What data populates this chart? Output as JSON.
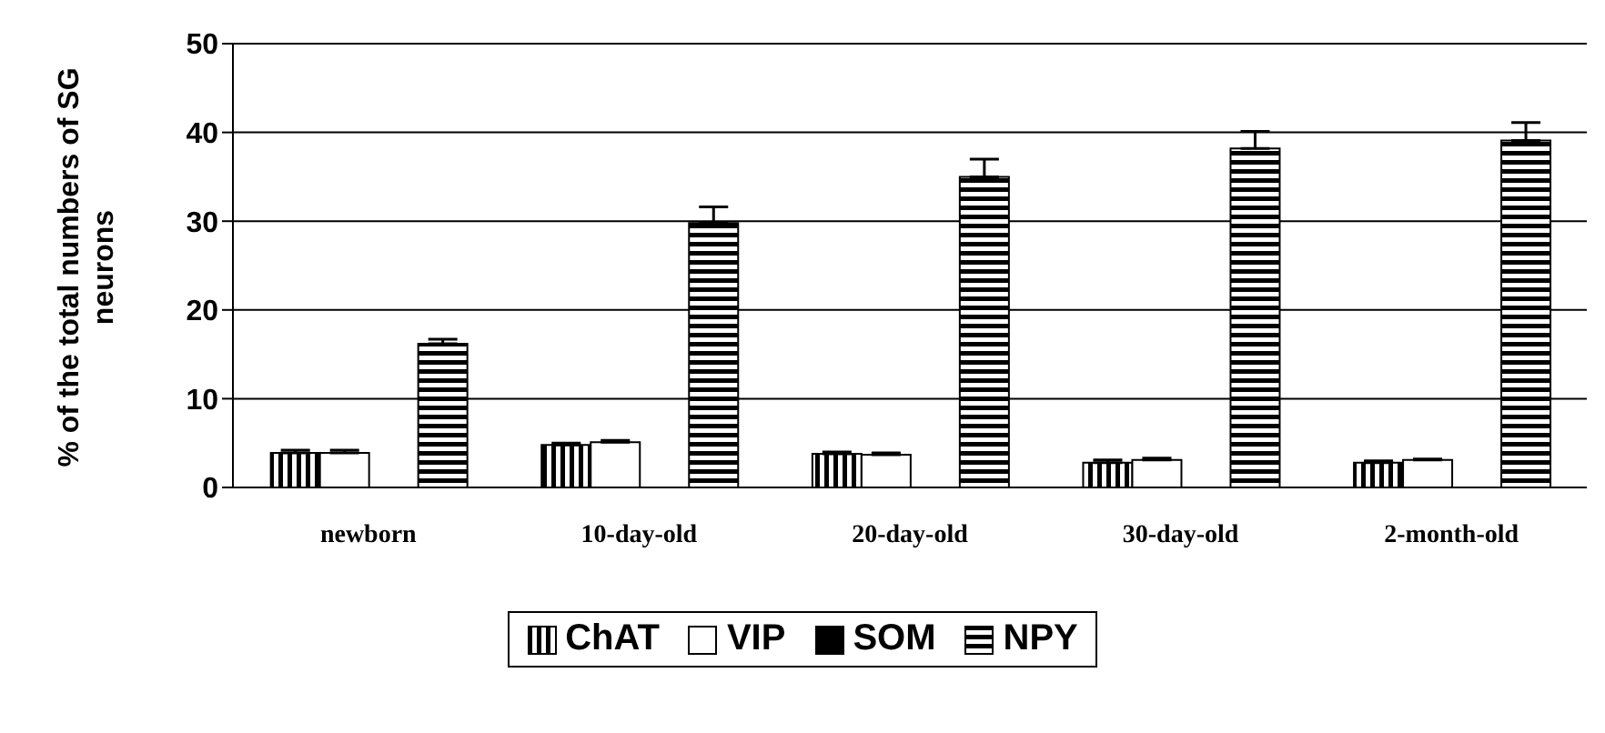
{
  "chart_data": {
    "type": "bar",
    "ylabel": "% of the total numbers of SG neurons",
    "categories": [
      "newborn",
      "10-day-old",
      "20-day-old",
      "30-day-old",
      "2-month-old"
    ],
    "series": [
      {
        "name": "ChAT",
        "color": "#000000",
        "values": [
          3.9,
          4.8,
          3.8,
          2.8,
          2.8
        ],
        "errors": [
          [
            3.9,
            4.2
          ],
          [
            4.8,
            5.0
          ],
          [
            3.8,
            4.0
          ],
          [
            2.8,
            3.1
          ],
          [
            2.8,
            3.0
          ]
        ]
      },
      {
        "name": "VIP",
        "color": "#ffffff",
        "values": [
          3.9,
          5.1,
          3.7,
          3.1,
          3.1
        ],
        "errors": [
          [
            3.9,
            4.2
          ],
          [
            5.1,
            5.3
          ],
          [
            3.7,
            3.9
          ],
          [
            3.1,
            3.3
          ],
          [
            3.1,
            3.2
          ]
        ]
      },
      {
        "name": "SOM",
        "color": "#000000",
        "values": [
          0,
          0,
          0,
          0,
          0
        ]
      },
      {
        "name": "NPY",
        "color": "#000000",
        "values": [
          16.2,
          29.8,
          35.0,
          38.2,
          39.1
        ],
        "errors": [
          [
            16.2,
            16.7
          ],
          [
            29.8,
            31.6
          ],
          [
            35.0,
            37.0
          ],
          [
            38.2,
            40.1
          ],
          [
            39.1,
            41.1
          ]
        ]
      }
    ],
    "ylim": [
      0,
      50
    ],
    "yticks": [
      0,
      10,
      20,
      30,
      40,
      50
    ],
    "grid": "y",
    "legend": "bottom"
  }
}
